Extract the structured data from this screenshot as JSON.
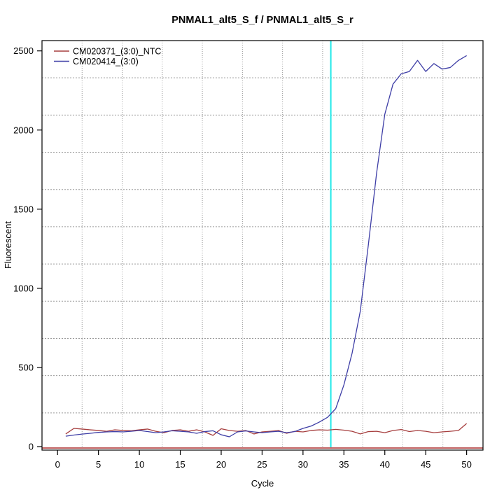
{
  "chart_data": {
    "type": "line",
    "title": "PNMAL1_alt5_S_f / PNMAL1_alt5_S_r",
    "xlabel": "Cycle",
    "ylabel": "Fluorescent",
    "xlim": [
      -1.9,
      52.0
    ],
    "ylim": [
      -22,
      2565
    ],
    "x_ticks": [
      0,
      5,
      10,
      15,
      20,
      25,
      30,
      35,
      40,
      45,
      50
    ],
    "y_ticks": [
      0,
      500,
      1000,
      1500,
      2000,
      2500
    ],
    "grid": {
      "divisions": 11,
      "color": "#9a9a9a",
      "style": "dotted"
    },
    "legend": {
      "position": "top-left",
      "entries": [
        {
          "label": "CM020371_(3:0)_NTC",
          "color": "#a63e3e"
        },
        {
          "label": "CM020414_(3:0)",
          "color": "#3e3ea6"
        }
      ]
    },
    "threshold_line": {
      "y": -9,
      "color": "#c06060"
    },
    "ct_line": {
      "x": 33.4,
      "color": "#21e8e8"
    },
    "cycles": [
      1,
      2,
      3,
      4,
      5,
      6,
      7,
      8,
      9,
      10,
      11,
      12,
      13,
      14,
      15,
      16,
      17,
      18,
      19,
      20,
      21,
      22,
      23,
      24,
      25,
      26,
      27,
      28,
      29,
      30,
      31,
      32,
      33,
      34,
      35,
      36,
      37,
      38,
      39,
      40,
      41,
      42,
      43,
      44,
      45,
      46,
      47,
      48,
      49,
      50
    ],
    "series": [
      {
        "name": "CM020371_(3:0)_NTC",
        "color": "#a63e3e",
        "values": [
          80,
          115,
          111,
          106,
          102,
          97,
          106,
          102,
          100,
          106,
          111,
          97,
          88,
          102,
          106,
          97,
          106,
          93,
          71,
          113,
          102,
          97,
          102,
          80,
          93,
          97,
          102,
          84,
          97,
          93,
          102,
          106,
          104,
          109,
          104,
          97,
          80,
          95,
          97,
          88,
          102,
          108,
          95,
          102,
          97,
          88,
          93,
          97,
          102,
          146
        ]
      },
      {
        "name": "CM020414_(3:0)",
        "color": "#3e3ea6",
        "values": [
          66,
          73,
          79,
          84,
          90,
          93,
          95,
          93,
          97,
          102,
          95,
          88,
          93,
          100,
          97,
          93,
          84,
          95,
          100,
          75,
          62,
          93,
          99,
          93,
          88,
          93,
          97,
          88,
          95,
          115,
          130,
          155,
          185,
          240,
          390,
          590,
          855,
          1280,
          1730,
          2100,
          2290,
          2355,
          2370,
          2440,
          2370,
          2420,
          2385,
          2395,
          2440,
          2470
        ]
      }
    ]
  }
}
